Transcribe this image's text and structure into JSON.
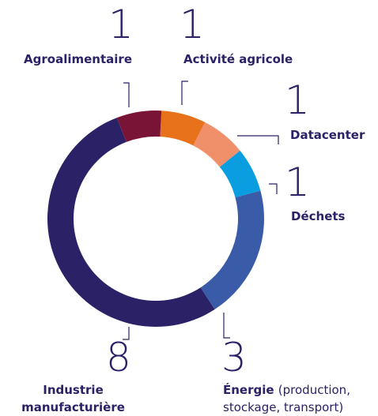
{
  "chart_data": {
    "type": "donut",
    "categories": [
      "Agroalimentaire",
      "Activité agricole",
      "Datacenter",
      "Déchets",
      "Énergie",
      "Industrie manufacturière"
    ],
    "descriptions": [
      null,
      null,
      null,
      null,
      "(production, stockage, transport)",
      null
    ],
    "values": [
      1,
      1,
      1,
      1,
      3,
      8
    ],
    "colors": [
      "#7a1437",
      "#e8711c",
      "#f0906a",
      "#0a9de0",
      "#3a5ca8",
      "#2a2166"
    ]
  }
}
